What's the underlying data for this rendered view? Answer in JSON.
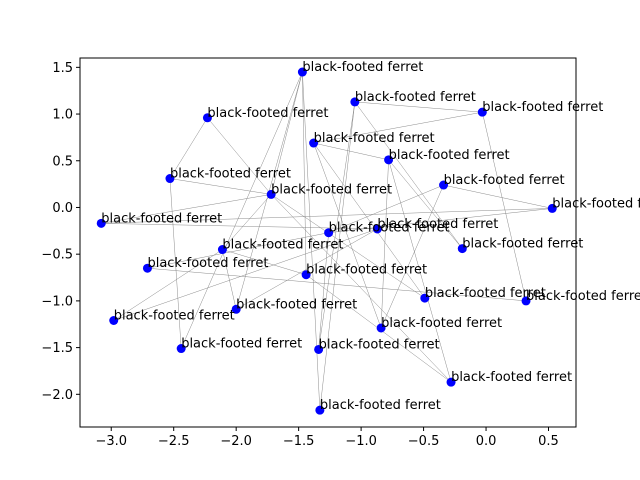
{
  "chart_data": {
    "type": "scatter",
    "title": "",
    "xlabel": "",
    "ylabel": "",
    "xlim": [
      -3.25,
      0.72
    ],
    "ylim": [
      -2.35,
      1.6
    ],
    "xticks": [
      -3.0,
      -2.5,
      -2.0,
      -1.5,
      -1.0,
      -0.5,
      0.0,
      0.5
    ],
    "xtick_labels": [
      "−3.0",
      "−2.5",
      "−2.0",
      "−1.5",
      "−1.0",
      "−0.5",
      "0.0",
      "0.5"
    ],
    "yticks": [
      -2.0,
      -1.5,
      -1.0,
      -0.5,
      0.0,
      0.5,
      1.0,
      1.5
    ],
    "ytick_labels": [
      "−2.0",
      "−1.5",
      "−1.0",
      "−0.5",
      "0.0",
      "0.5",
      "1.0",
      "1.5"
    ],
    "grid": false,
    "point_color": "#0000ff",
    "edge_color": "#808080",
    "points": [
      {
        "x": -1.47,
        "y": 1.45,
        "label": "black-footed ferret"
      },
      {
        "x": -1.05,
        "y": 1.13,
        "label": "black-footed ferret"
      },
      {
        "x": -0.03,
        "y": 1.02,
        "label": "black-footed ferret"
      },
      {
        "x": -2.23,
        "y": 0.96,
        "label": "black-footed ferret"
      },
      {
        "x": -1.38,
        "y": 0.69,
        "label": "black-footed ferret"
      },
      {
        "x": -0.78,
        "y": 0.51,
        "label": "black-footed ferret"
      },
      {
        "x": -2.53,
        "y": 0.31,
        "label": "black-footed ferret"
      },
      {
        "x": -0.34,
        "y": 0.24,
        "label": "black-footed ferret"
      },
      {
        "x": -1.72,
        "y": 0.14,
        "label": "black-footed ferret"
      },
      {
        "x": 0.53,
        "y": -0.01,
        "label": "black-footed ferret"
      },
      {
        "x": -3.08,
        "y": -0.17,
        "label": "black-footed ferret"
      },
      {
        "x": -1.26,
        "y": -0.27,
        "label": "black-footed ferret"
      },
      {
        "x": -0.87,
        "y": -0.23,
        "label": "black-footed ferret"
      },
      {
        "x": -2.11,
        "y": -0.45,
        "label": "black-footed ferret"
      },
      {
        "x": -0.19,
        "y": -0.44,
        "label": "black-footed ferret"
      },
      {
        "x": -2.71,
        "y": -0.65,
        "label": "black-footed ferret"
      },
      {
        "x": -1.44,
        "y": -0.72,
        "label": "black-footed ferret"
      },
      {
        "x": -0.49,
        "y": -0.97,
        "label": "black-footed ferret"
      },
      {
        "x": 0.32,
        "y": -1.0,
        "label": "black-footed ferret"
      },
      {
        "x": -2.0,
        "y": -1.09,
        "label": "black-footed ferret"
      },
      {
        "x": -2.98,
        "y": -1.21,
        "label": "black-footed ferret"
      },
      {
        "x": -0.84,
        "y": -1.29,
        "label": "black-footed ferret"
      },
      {
        "x": -2.44,
        "y": -1.51,
        "label": "black-footed ferret"
      },
      {
        "x": -1.34,
        "y": -1.52,
        "label": "black-footed ferret"
      },
      {
        "x": -0.28,
        "y": -1.87,
        "label": "black-footed ferret"
      },
      {
        "x": -1.33,
        "y": -2.17,
        "label": "black-footed ferret"
      }
    ],
    "edges": [
      [
        0,
        16
      ],
      [
        0,
        19
      ],
      [
        0,
        22
      ],
      [
        0,
        8
      ],
      [
        1,
        2
      ],
      [
        1,
        23
      ],
      [
        1,
        14
      ],
      [
        1,
        25
      ],
      [
        2,
        18
      ],
      [
        2,
        4
      ],
      [
        3,
        6
      ],
      [
        3,
        8
      ],
      [
        4,
        21
      ],
      [
        4,
        17
      ],
      [
        4,
        5
      ],
      [
        5,
        21
      ],
      [
        5,
        14
      ],
      [
        5,
        24
      ],
      [
        6,
        8
      ],
      [
        6,
        22
      ],
      [
        7,
        9
      ],
      [
        7,
        21
      ],
      [
        7,
        11
      ],
      [
        8,
        24
      ],
      [
        8,
        17
      ],
      [
        8,
        13
      ],
      [
        9,
        10
      ],
      [
        9,
        11
      ],
      [
        10,
        12
      ],
      [
        10,
        8
      ],
      [
        11,
        23
      ],
      [
        11,
        15
      ],
      [
        13,
        16
      ],
      [
        13,
        20
      ],
      [
        15,
        18
      ],
      [
        16,
        24
      ],
      [
        19,
        13
      ],
      [
        19,
        12
      ],
      [
        20,
        12
      ],
      [
        25,
        0
      ]
    ]
  }
}
